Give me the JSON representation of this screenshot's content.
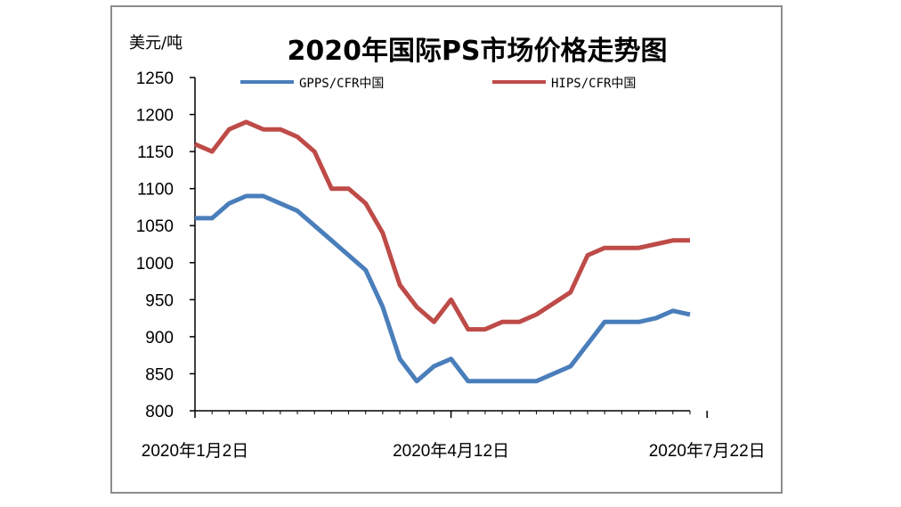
{
  "chart_data": {
    "type": "line",
    "title": "2020年国际PS市场价格走势图",
    "ylabel": "美元/吨",
    "xlabel": "",
    "ylim": [
      800,
      1250
    ],
    "yticks": [
      800,
      850,
      900,
      950,
      1000,
      1050,
      1100,
      1150,
      1200,
      1250
    ],
    "xtick_labels": [
      "2020年1月2日",
      "2020年4月12日",
      "2020年7月22日"
    ],
    "xtick_indices": [
      0,
      15,
      30
    ],
    "grid": false,
    "legend_position": "top",
    "series": [
      {
        "name": "GPPS/CFR中国",
        "color": "#4a7ebb",
        "values": [
          1060,
          1060,
          1080,
          1090,
          1090,
          1080,
          1070,
          1050,
          1030,
          1010,
          990,
          940,
          870,
          840,
          860,
          870,
          840,
          840,
          840,
          840,
          840,
          850,
          860,
          890,
          920,
          920,
          920,
          925,
          935,
          930
        ]
      },
      {
        "name": "HIPS/CFR中国",
        "color": "#be4b48",
        "values": [
          1160,
          1150,
          1180,
          1190,
          1180,
          1180,
          1170,
          1150,
          1100,
          1100,
          1080,
          1040,
          970,
          940,
          920,
          950,
          910,
          910,
          920,
          920,
          930,
          945,
          960,
          1010,
          1020,
          1020,
          1020,
          1025,
          1030,
          1030
        ]
      }
    ]
  }
}
